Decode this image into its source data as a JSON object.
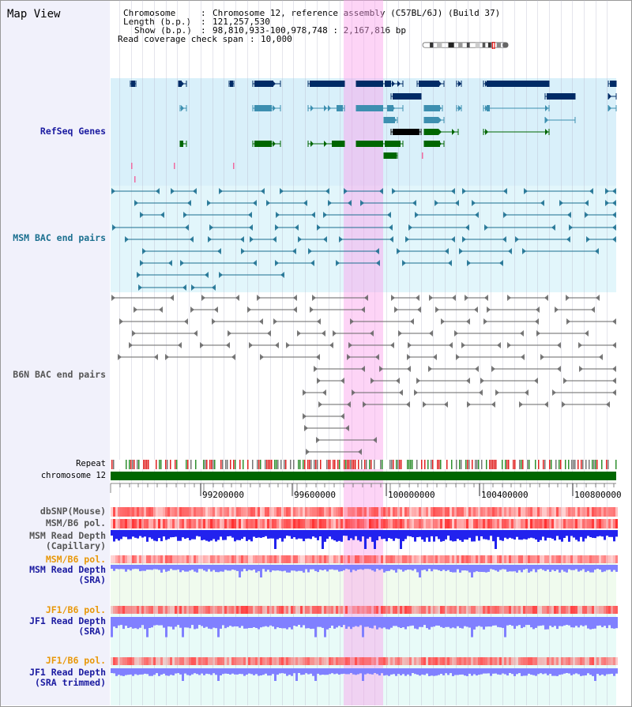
{
  "window": {
    "title": "Map View"
  },
  "info": {
    "chromosome_key": "Chromosome",
    "chromosome_val": "Chromosome 12, reference assembly (C57BL/6J) (Build 37)",
    "length_key": "Length (b.p.)",
    "length_val": "121,257,530",
    "show_key": "Show (b.p.)",
    "show_val": "98,810,933-100,978,748 : 2,167,816 bp",
    "coverage_key": "Read coverage check span",
    "coverage_val": "10,000"
  },
  "tracks": {
    "refseq": "RefSeq Genes",
    "msm_bac": "MSM BAC end pairs",
    "b6n_bac": "B6N BAC end pairs",
    "repeat": "Repeat",
    "chromosome": "chromosome 12",
    "dbsnp": "dbSNP(Mouse)",
    "msm_b6_pol1": "MSM/B6 pol.",
    "msm_read_depth_cap_1": "MSM Read Depth",
    "msm_read_depth_cap_2": "(Capillary)",
    "msm_b6_pol2": "MSM/B6 pol.",
    "msm_read_depth_sra_1": "MSM Read Depth",
    "msm_read_depth_sra_2": "(SRA)",
    "jf1_b6_pol1": "JF1/B6 pol.",
    "jf1_read_depth_sra_1": "JF1 Read Depth",
    "jf1_read_depth_sra_2": "(SRA)",
    "jf1_b6_pol2": "JF1/B6 pol.",
    "jf1_read_depth_trim_1": "JF1 Read Depth",
    "jf1_read_depth_trim_2": "(SRA trimmed)"
  },
  "axis": {
    "ticks": [
      "99200000",
      "99600000",
      "100000000",
      "100400000",
      "100800000"
    ]
  },
  "colors": {
    "refseq_bg": "#d9f0fa",
    "msm_bg": "#e2f6fb",
    "highlight": "#f8c8f0",
    "gene_dark": "#002b66",
    "gene_mid": "#3d8fb0",
    "gene_green": "#006600",
    "bac_msm": "#1a6f8f",
    "bac_b6n": "#666666",
    "chrom_green": "#006600",
    "pol_red": "#ff4a4a",
    "depth_blue": "#2222ee",
    "depth_lav": "#8080ff"
  }
}
